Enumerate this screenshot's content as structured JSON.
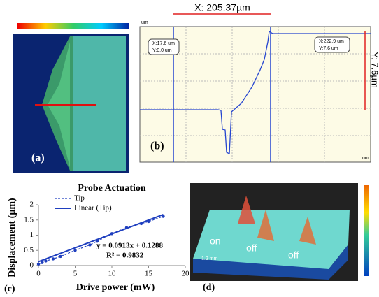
{
  "panel_a": {
    "label": "(a)"
  },
  "panel_b": {
    "label": "(b)",
    "x_span": "X: 205.37µm",
    "y_span": "Y: 7.6µm",
    "unit": "um",
    "cursor_1": [
      "X:17.6 um",
      "Y:0.0 um"
    ],
    "cursor_2": [
      "X:222.9 um",
      "Y:7.6 um"
    ]
  },
  "panel_c": {
    "label": "(c)"
  },
  "chart_data": {
    "type": "line",
    "title": "Probe Actuation",
    "x_label": "Drive power (mW)",
    "y_label": "Displacement (µm)",
    "xlim": [
      0,
      20
    ],
    "xticks": [
      0,
      5,
      10,
      15,
      20
    ],
    "ylim": [
      0,
      2
    ],
    "yticks": [
      0,
      0.5,
      1,
      1.5,
      2
    ],
    "series": [
      {
        "name": "Tip",
        "color": "#1f3fbf",
        "dashed": true,
        "markers": true,
        "x": [
          0,
          0.5,
          1,
          2,
          3,
          5,
          7,
          8,
          10,
          12,
          14,
          15,
          17
        ],
        "values": [
          0.05,
          0.1,
          0.15,
          0.22,
          0.3,
          0.5,
          0.68,
          0.8,
          1.05,
          1.25,
          1.38,
          1.45,
          1.62
        ]
      },
      {
        "name": "Linear (Tip)",
        "color": "#1f3fbf",
        "dashed": false,
        "markers": false,
        "x": [
          0,
          17
        ],
        "values": [
          0.1288,
          1.6809
        ]
      }
    ],
    "annotations": [
      "y = 0.0913x + 0.1288",
      "R² = 0.9832"
    ]
  },
  "panel_d": {
    "label": "(d)",
    "states": [
      "on",
      "off",
      "off"
    ],
    "scale": "1.2 mm"
  }
}
